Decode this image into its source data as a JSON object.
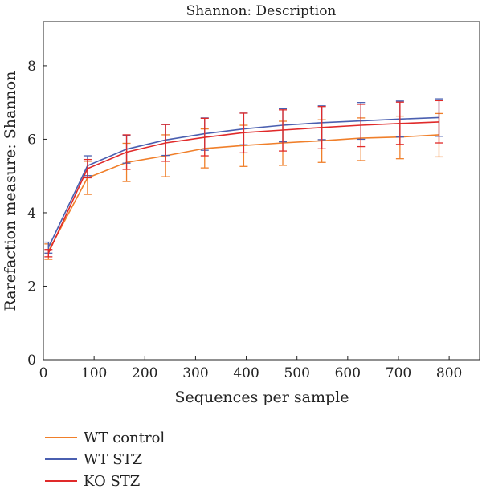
{
  "chart_data": {
    "type": "line",
    "title": "Shannon: Description",
    "xlabel": "Sequences per sample",
    "ylabel": "Rarefaction measure: Shannon",
    "xlim": [
      0,
      860
    ],
    "ylim": [
      0,
      9.2
    ],
    "x_ticks": [
      "0",
      "100",
      "200",
      "300",
      "400",
      "500",
      "600",
      "700",
      "800"
    ],
    "y_ticks": [
      "0",
      "2",
      "4",
      "6",
      "8"
    ],
    "grid": false,
    "legend_position": "bottom-left",
    "x": [
      10,
      87,
      164,
      241,
      318,
      395,
      472,
      549,
      626,
      703,
      780
    ],
    "series": [
      {
        "name": "WT control",
        "color": "#f07f2a",
        "values": [
          2.95,
          4.95,
          5.37,
          5.55,
          5.75,
          5.83,
          5.9,
          5.96,
          6.03,
          6.06,
          6.12
        ],
        "err_low": [
          0.22,
          0.45,
          0.52,
          0.57,
          0.53,
          0.57,
          0.61,
          0.59,
          0.61,
          0.59,
          0.6
        ],
        "err_high": [
          0.2,
          0.45,
          0.52,
          0.57,
          0.53,
          0.55,
          0.59,
          0.57,
          0.55,
          0.57,
          0.58
        ]
      },
      {
        "name": "WT STZ",
        "color": "#4a5fb0",
        "values": [
          3.05,
          5.28,
          5.73,
          5.98,
          6.15,
          6.28,
          6.38,
          6.45,
          6.5,
          6.55,
          6.59
        ],
        "err_low": [
          0.15,
          0.27,
          0.38,
          0.42,
          0.45,
          0.43,
          0.45,
          0.46,
          0.5,
          0.49,
          0.51
        ],
        "err_high": [
          0.15,
          0.27,
          0.38,
          0.42,
          0.43,
          0.43,
          0.45,
          0.46,
          0.5,
          0.49,
          0.51
        ]
      },
      {
        "name": "KO STZ",
        "color": "#e02a2a",
        "values": [
          2.9,
          5.2,
          5.65,
          5.9,
          6.05,
          6.18,
          6.25,
          6.32,
          6.38,
          6.43,
          6.47
        ],
        "err_low": [
          0.1,
          0.25,
          0.47,
          0.5,
          0.5,
          0.55,
          0.57,
          0.58,
          0.58,
          0.57,
          0.57
        ],
        "err_high": [
          0.1,
          0.25,
          0.47,
          0.5,
          0.52,
          0.53,
          0.55,
          0.57,
          0.57,
          0.58,
          0.58
        ]
      }
    ]
  }
}
